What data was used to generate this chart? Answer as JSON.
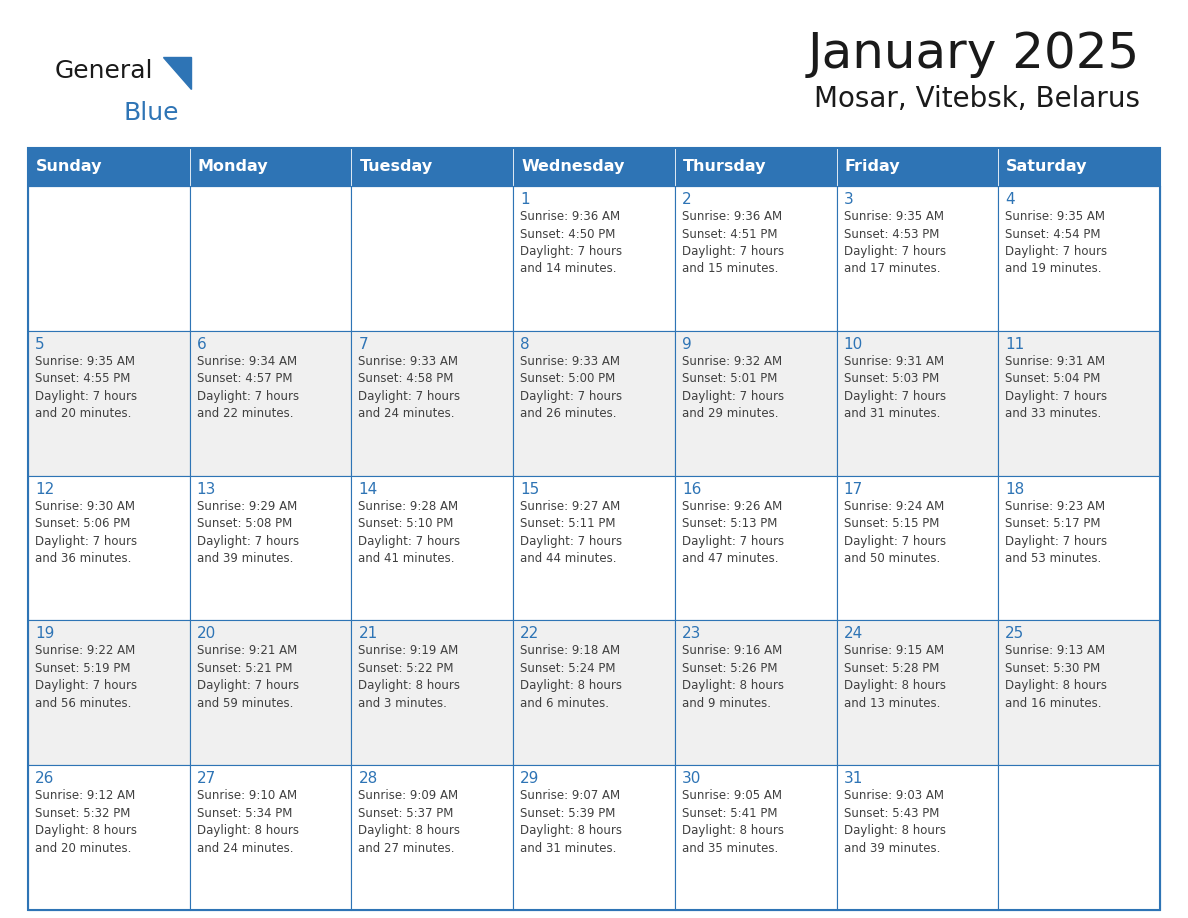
{
  "title": "January 2025",
  "subtitle": "Mosar, Vitebsk, Belarus",
  "days_of_week": [
    "Sunday",
    "Monday",
    "Tuesday",
    "Wednesday",
    "Thursday",
    "Friday",
    "Saturday"
  ],
  "header_bg": "#2E74B5",
  "header_text": "#FFFFFF",
  "cell_bg_white": "#FFFFFF",
  "cell_bg_gray": "#F0F0F0",
  "border_color": "#2E74B5",
  "day_num_color": "#2E74B5",
  "text_color": "#404040",
  "title_color": "#1a1a1a",
  "logo_general_color": "#1a1a1a",
  "logo_blue_color": "#2E74B5",
  "calendar": [
    [
      {
        "day": "",
        "info": ""
      },
      {
        "day": "",
        "info": ""
      },
      {
        "day": "",
        "info": ""
      },
      {
        "day": "1",
        "info": "Sunrise: 9:36 AM\nSunset: 4:50 PM\nDaylight: 7 hours\nand 14 minutes."
      },
      {
        "day": "2",
        "info": "Sunrise: 9:36 AM\nSunset: 4:51 PM\nDaylight: 7 hours\nand 15 minutes."
      },
      {
        "day": "3",
        "info": "Sunrise: 9:35 AM\nSunset: 4:53 PM\nDaylight: 7 hours\nand 17 minutes."
      },
      {
        "day": "4",
        "info": "Sunrise: 9:35 AM\nSunset: 4:54 PM\nDaylight: 7 hours\nand 19 minutes."
      }
    ],
    [
      {
        "day": "5",
        "info": "Sunrise: 9:35 AM\nSunset: 4:55 PM\nDaylight: 7 hours\nand 20 minutes."
      },
      {
        "day": "6",
        "info": "Sunrise: 9:34 AM\nSunset: 4:57 PM\nDaylight: 7 hours\nand 22 minutes."
      },
      {
        "day": "7",
        "info": "Sunrise: 9:33 AM\nSunset: 4:58 PM\nDaylight: 7 hours\nand 24 minutes."
      },
      {
        "day": "8",
        "info": "Sunrise: 9:33 AM\nSunset: 5:00 PM\nDaylight: 7 hours\nand 26 minutes."
      },
      {
        "day": "9",
        "info": "Sunrise: 9:32 AM\nSunset: 5:01 PM\nDaylight: 7 hours\nand 29 minutes."
      },
      {
        "day": "10",
        "info": "Sunrise: 9:31 AM\nSunset: 5:03 PM\nDaylight: 7 hours\nand 31 minutes."
      },
      {
        "day": "11",
        "info": "Sunrise: 9:31 AM\nSunset: 5:04 PM\nDaylight: 7 hours\nand 33 minutes."
      }
    ],
    [
      {
        "day": "12",
        "info": "Sunrise: 9:30 AM\nSunset: 5:06 PM\nDaylight: 7 hours\nand 36 minutes."
      },
      {
        "day": "13",
        "info": "Sunrise: 9:29 AM\nSunset: 5:08 PM\nDaylight: 7 hours\nand 39 minutes."
      },
      {
        "day": "14",
        "info": "Sunrise: 9:28 AM\nSunset: 5:10 PM\nDaylight: 7 hours\nand 41 minutes."
      },
      {
        "day": "15",
        "info": "Sunrise: 9:27 AM\nSunset: 5:11 PM\nDaylight: 7 hours\nand 44 minutes."
      },
      {
        "day": "16",
        "info": "Sunrise: 9:26 AM\nSunset: 5:13 PM\nDaylight: 7 hours\nand 47 minutes."
      },
      {
        "day": "17",
        "info": "Sunrise: 9:24 AM\nSunset: 5:15 PM\nDaylight: 7 hours\nand 50 minutes."
      },
      {
        "day": "18",
        "info": "Sunrise: 9:23 AM\nSunset: 5:17 PM\nDaylight: 7 hours\nand 53 minutes."
      }
    ],
    [
      {
        "day": "19",
        "info": "Sunrise: 9:22 AM\nSunset: 5:19 PM\nDaylight: 7 hours\nand 56 minutes."
      },
      {
        "day": "20",
        "info": "Sunrise: 9:21 AM\nSunset: 5:21 PM\nDaylight: 7 hours\nand 59 minutes."
      },
      {
        "day": "21",
        "info": "Sunrise: 9:19 AM\nSunset: 5:22 PM\nDaylight: 8 hours\nand 3 minutes."
      },
      {
        "day": "22",
        "info": "Sunrise: 9:18 AM\nSunset: 5:24 PM\nDaylight: 8 hours\nand 6 minutes."
      },
      {
        "day": "23",
        "info": "Sunrise: 9:16 AM\nSunset: 5:26 PM\nDaylight: 8 hours\nand 9 minutes."
      },
      {
        "day": "24",
        "info": "Sunrise: 9:15 AM\nSunset: 5:28 PM\nDaylight: 8 hours\nand 13 minutes."
      },
      {
        "day": "25",
        "info": "Sunrise: 9:13 AM\nSunset: 5:30 PM\nDaylight: 8 hours\nand 16 minutes."
      }
    ],
    [
      {
        "day": "26",
        "info": "Sunrise: 9:12 AM\nSunset: 5:32 PM\nDaylight: 8 hours\nand 20 minutes."
      },
      {
        "day": "27",
        "info": "Sunrise: 9:10 AM\nSunset: 5:34 PM\nDaylight: 8 hours\nand 24 minutes."
      },
      {
        "day": "28",
        "info": "Sunrise: 9:09 AM\nSunset: 5:37 PM\nDaylight: 8 hours\nand 27 minutes."
      },
      {
        "day": "29",
        "info": "Sunrise: 9:07 AM\nSunset: 5:39 PM\nDaylight: 8 hours\nand 31 minutes."
      },
      {
        "day": "30",
        "info": "Sunrise: 9:05 AM\nSunset: 5:41 PM\nDaylight: 8 hours\nand 35 minutes."
      },
      {
        "day": "31",
        "info": "Sunrise: 9:03 AM\nSunset: 5:43 PM\nDaylight: 8 hours\nand 39 minutes."
      },
      {
        "day": "",
        "info": ""
      }
    ]
  ]
}
